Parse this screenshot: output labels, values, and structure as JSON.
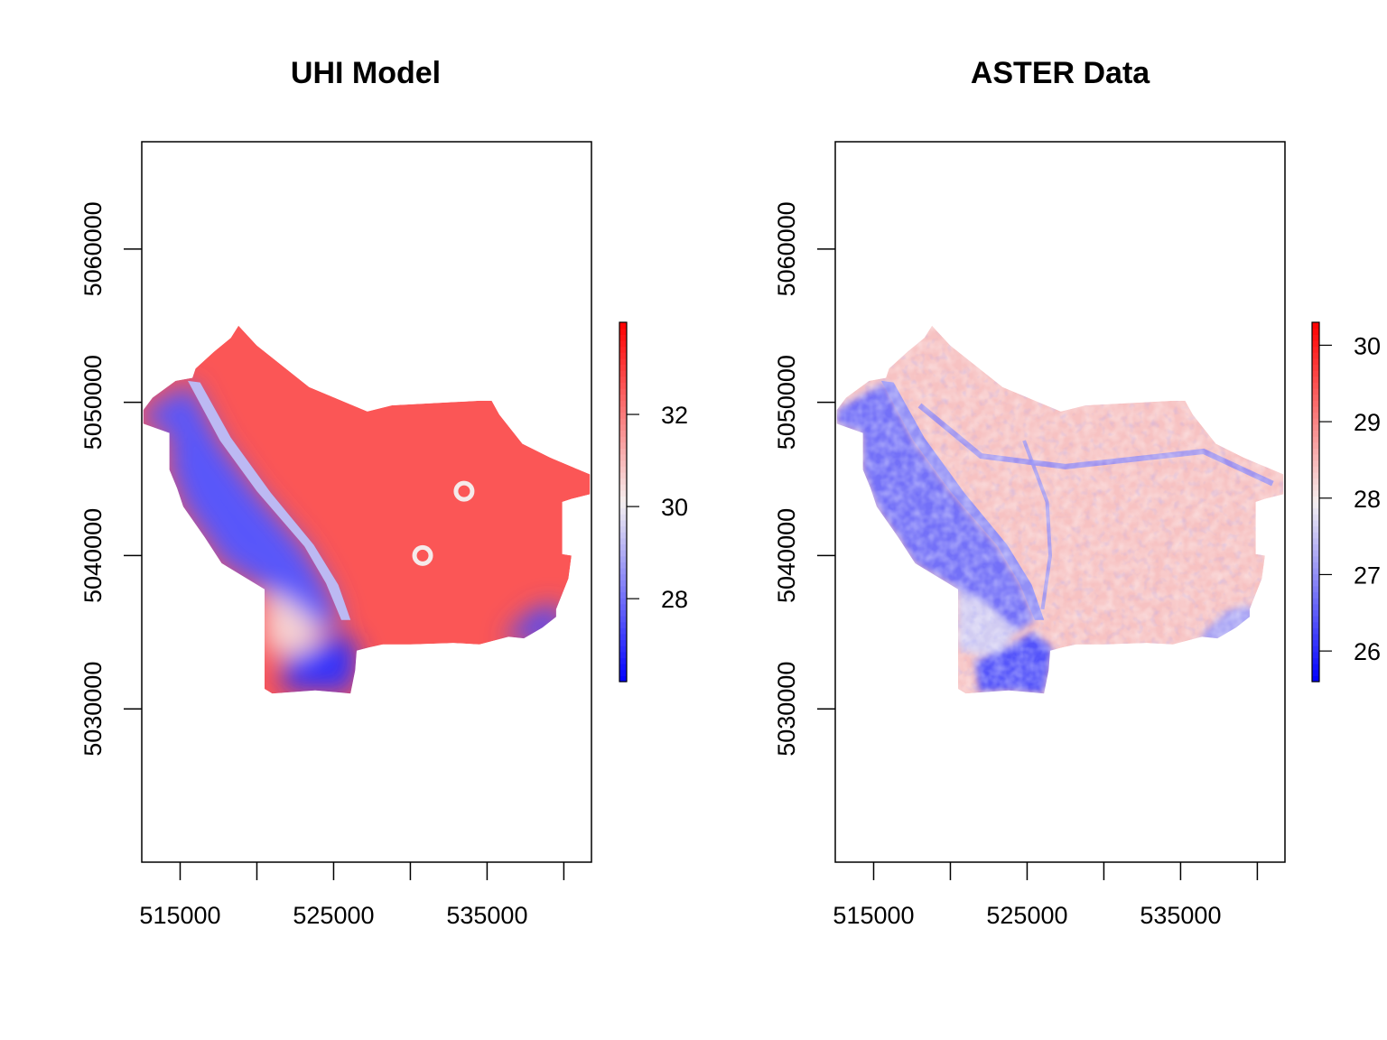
{
  "chart_data": [
    {
      "type": "heatmap",
      "title": "UHI Model",
      "xlabel": "",
      "ylabel": "",
      "xlim": [
        512500,
        541800
      ],
      "ylim": [
        5020000,
        5067000
      ],
      "x_ticks": [
        515000,
        520000,
        525000,
        530000,
        535000,
        540000
      ],
      "x_tick_labels": [
        "515000",
        "525000",
        "535000"
      ],
      "x_tick_label_values": [
        515000,
        525000,
        535000
      ],
      "y_ticks": [
        5030000,
        5040000,
        5050000,
        5060000
      ],
      "y_tick_labels": [
        "5030000",
        "5040000",
        "5050000",
        "5060000"
      ],
      "color_scale": {
        "low": "#0000ff",
        "mid": "#f5f0f0",
        "high": "#ff0000"
      },
      "legend": {
        "placement": "right",
        "range": [
          26.2,
          34.0
        ],
        "ticks": [
          28,
          30,
          32
        ],
        "tick_labels": [
          "28",
          "30",
          "32"
        ]
      },
      "grid": false,
      "region_values": {
        "west_hills": 27.6,
        "river_band": 29.2,
        "urban_core": 32.6,
        "southwest_urban": 30.6,
        "south_valley": 27.0,
        "southeast_creek": 27.4
      }
    },
    {
      "type": "heatmap",
      "title": "ASTER Data",
      "xlabel": "",
      "ylabel": "",
      "xlim": [
        512500,
        541800
      ],
      "ylim": [
        5020000,
        5067000
      ],
      "x_ticks": [
        515000,
        520000,
        525000,
        530000,
        535000,
        540000
      ],
      "x_tick_labels": [
        "515000",
        "525000",
        "535000"
      ],
      "x_tick_label_values": [
        515000,
        525000,
        535000
      ],
      "y_ticks": [
        5030000,
        5040000,
        5050000,
        5060000
      ],
      "y_tick_labels": [
        "5030000",
        "5040000",
        "5050000",
        "5060000"
      ],
      "color_scale": {
        "low": "#0000ff",
        "mid": "#f5f0f0",
        "high": "#ff0000"
      },
      "legend": {
        "placement": "right",
        "range": [
          25.6,
          30.3
        ],
        "ticks": [
          26,
          27,
          28,
          29,
          30
        ],
        "tick_labels": [
          "26",
          "27",
          "28",
          "29",
          "30"
        ]
      },
      "grid": false,
      "region_values": {
        "west_hills": 26.7,
        "river_band": 27.0,
        "urban_core": 28.4,
        "southwest_urban": 27.6,
        "south_valley": 26.4,
        "southeast_creek": 27.2
      }
    }
  ]
}
